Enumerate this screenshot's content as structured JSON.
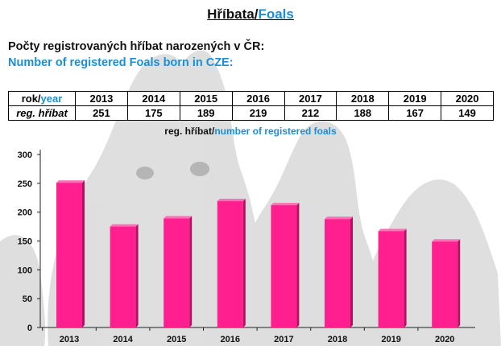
{
  "header": {
    "title_cz": "Hříbata",
    "title_sep": "/",
    "title_en": "Foals",
    "subtitle_cz": "Počty registrovaných hříbat narozených v ČR:",
    "subtitle_en": "Number of registered Foals born in CZE:"
  },
  "table": {
    "year_label_cz": "rok/",
    "year_label_en": "year",
    "count_label": "reg. hříbat",
    "years": [
      "2013",
      "2014",
      "2015",
      "2016",
      "2017",
      "2018",
      "2019",
      "2020"
    ],
    "counts": [
      "251",
      "175",
      "189",
      "219",
      "212",
      "188",
      "167",
      "149"
    ]
  },
  "colors": {
    "accent_blue": "#1a8fd6",
    "bar": "#ff1f8f"
  },
  "chart_data": {
    "type": "bar",
    "title_cz": "reg. hříbat/",
    "title_en": "number of registered foals",
    "categories": [
      "2013",
      "2014",
      "2015",
      "2016",
      "2017",
      "2018",
      "2019",
      "2020"
    ],
    "values": [
      251,
      175,
      189,
      219,
      212,
      188,
      167,
      149
    ],
    "ylim": [
      0,
      300
    ],
    "yticks": [
      0,
      50,
      100,
      150,
      200,
      250,
      300
    ],
    "grid": false,
    "legend": "none"
  }
}
